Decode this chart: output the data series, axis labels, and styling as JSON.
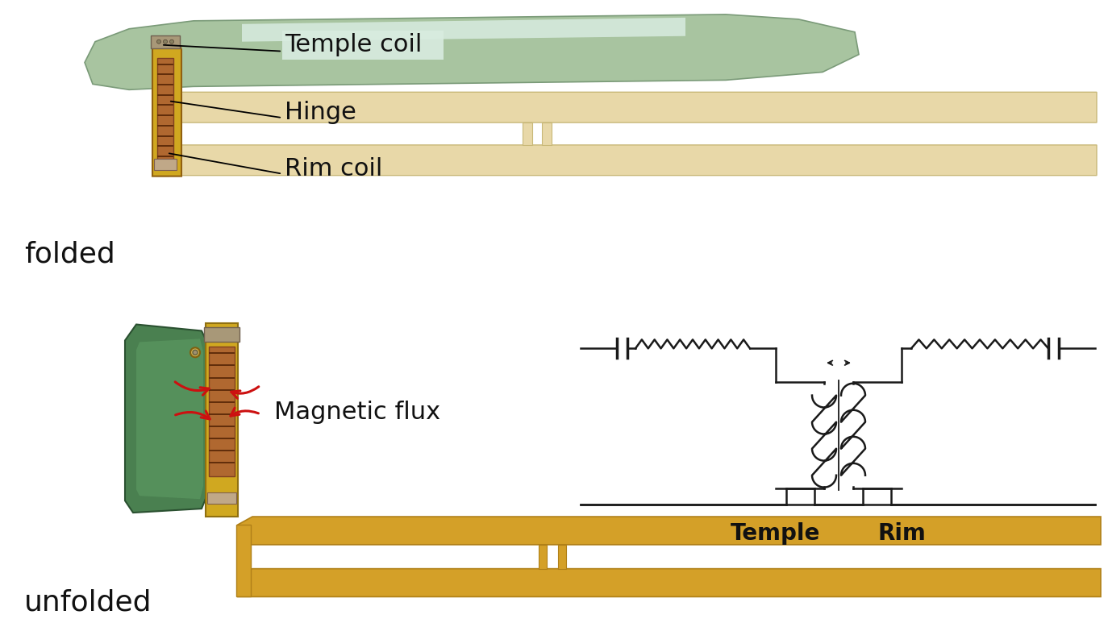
{
  "bg_color": "#ffffff",
  "folded_label": "folded",
  "unfolded_label": "unfolded",
  "temple_coil_label": "Temple coil",
  "hinge_label": "Hinge",
  "rim_coil_label": "Rim coil",
  "magnetic_flux_label": "Magnetic flux",
  "temple_label": "Temple",
  "rim_label": "Rim",
  "green_temple_color": "#a8c4a0",
  "green_temple_edge": "#7a9a78",
  "green_unfolded_color": "#4a8050",
  "green_unfolded_edge": "#2a5030",
  "beige_frame_color": "#e8d8a8",
  "beige_frame_edge": "#c8b878",
  "gold_frame_color": "#d4a028",
  "gold_frame_edge": "#b08018",
  "hinge_gold_color": "#d0a820",
  "hinge_brown_color": "#a06828",
  "hinge_gray_color": "#a89878",
  "circuit_color": "#1a1a1a",
  "red_color": "#cc1010",
  "label_color": "#111111",
  "temple_rim_label_color": "#1a1a8a",
  "label_fontsize": 22,
  "circuit_fontsize": 20,
  "side_label_fontsize": 26,
  "highlight_color": "#d8ece0",
  "highlight_alpha": 0.85
}
